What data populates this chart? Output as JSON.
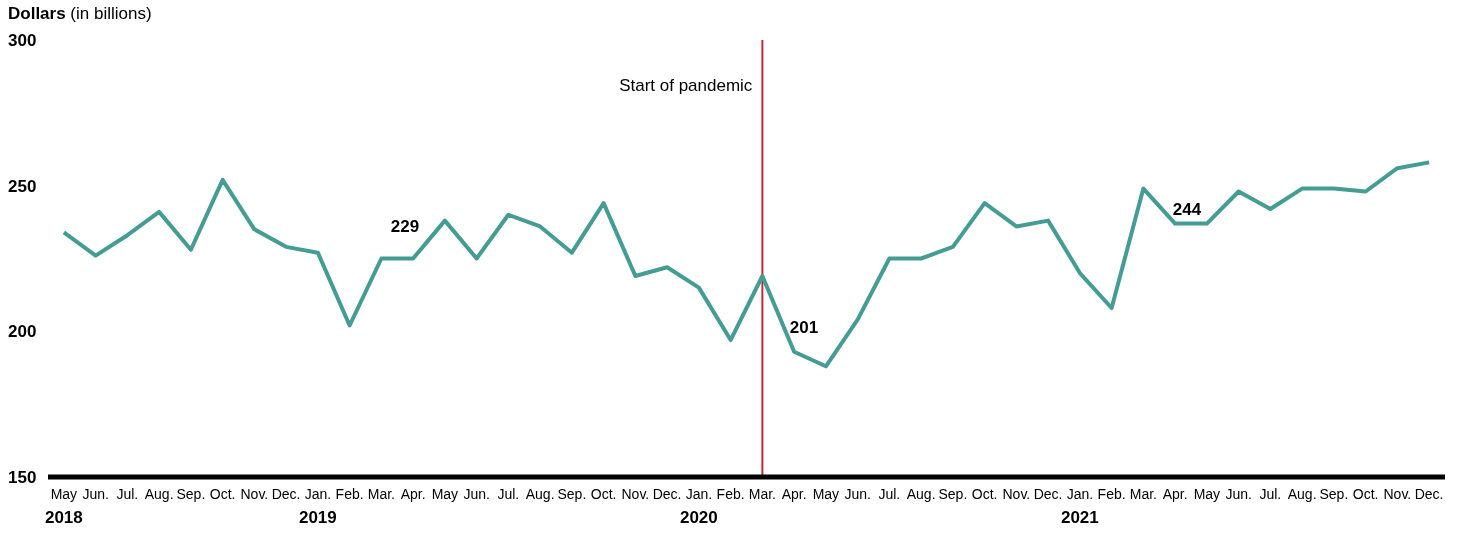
{
  "chart_data": {
    "type": "line",
    "ylabel": "Dollars (in billions)",
    "x": [
      "2018-05",
      "2018-06",
      "2018-07",
      "2018-08",
      "2018-09",
      "2018-10",
      "2018-11",
      "2018-12",
      "2019-01",
      "2019-02",
      "2019-03",
      "2019-04",
      "2019-05",
      "2019-06",
      "2019-07",
      "2019-08",
      "2019-09",
      "2019-10",
      "2019-11",
      "2019-12",
      "2020-01",
      "2020-02",
      "2020-03",
      "2020-04",
      "2020-05",
      "2020-06",
      "2020-07",
      "2020-08",
      "2020-09",
      "2020-10",
      "2020-11",
      "2020-12",
      "2021-01",
      "2021-02",
      "2021-03",
      "2021-04",
      "2021-05",
      "2021-06",
      "2021-07",
      "2021-08",
      "2021-09",
      "2021-10",
      "2021-11",
      "2021-12"
    ],
    "series": [
      {
        "color": "#459c94",
        "values": [
          234,
          226,
          233,
          241,
          228,
          252,
          235,
          229,
          227,
          202,
          225,
          225,
          238,
          225,
          240,
          236,
          227,
          244,
          219,
          222,
          215,
          197,
          219,
          193,
          188,
          204,
          225,
          225,
          229,
          244,
          236,
          238,
          220,
          208,
          249,
          237,
          237,
          248,
          242,
          249,
          249,
          248,
          256,
          258
        ]
      }
    ],
    "annotations": [
      "229",
      "201",
      "244"
    ],
    "xlim": [
      "2018-04-16",
      "2021-12-16"
    ],
    "xticks": [
      {
        "value": "2018-05",
        "label": "May\n2018"
      },
      {
        "value": "2018-06",
        "label": "Jun."
      },
      {
        "value": "2018-07",
        "label": "Jul."
      },
      {
        "value": "2018-08",
        "label": "Aug."
      },
      {
        "value": "2018-09",
        "label": "Sep."
      },
      {
        "value": "2018-10",
        "label": "Oct."
      },
      {
        "value": "2018-11",
        "label": "Nov."
      },
      {
        "value": "2018-12",
        "label": "Dec."
      },
      {
        "value": "2019-01",
        "label": "Jan.\n2019"
      },
      {
        "value": "2019-02",
        "label": "Feb."
      },
      {
        "value": "2019-03",
        "label": "Mar."
      },
      {
        "value": "2019-04",
        "label": "Apr."
      },
      {
        "value": "2019-05",
        "label": "May"
      },
      {
        "value": "2019-06",
        "label": "Jun."
      },
      {
        "value": "2019-07",
        "label": "Jul."
      },
      {
        "value": "2019-08",
        "label": "Aug."
      },
      {
        "value": "2019-09",
        "label": "Sep."
      },
      {
        "value": "2019-10",
        "label": "Oct."
      },
      {
        "value": "2019-11",
        "label": "Nov."
      },
      {
        "value": "2019-12",
        "label": "Dec."
      },
      {
        "value": "2020-01",
        "label": "Jan.\n2020"
      },
      {
        "value": "2020-02",
        "label": "Feb."
      },
      {
        "value": "2020-03",
        "label": "Mar."
      },
      {
        "value": "2020-04",
        "label": "Apr."
      },
      {
        "value": "2020-05",
        "label": "May"
      },
      {
        "value": "2020-06",
        "label": "Jun."
      },
      {
        "value": "2020-07",
        "label": "Jul."
      },
      {
        "value": "2020-08",
        "label": "Aug."
      },
      {
        "value": "2020-09",
        "label": "Sep."
      },
      {
        "value": "2020-10",
        "label": "Oct."
      },
      {
        "value": "2020-11",
        "label": "Nov."
      },
      {
        "value": "2020-12",
        "label": "Dec."
      },
      {
        "value": "2021-01",
        "label": "Jan.\n2021"
      },
      {
        "value": "2021-02",
        "label": "Feb."
      },
      {
        "value": "2021-03",
        "label": "Mar."
      },
      {
        "value": "2021-04",
        "label": "Apr."
      },
      {
        "value": "2021-05",
        "label": "May"
      },
      {
        "value": "2021-06",
        "label": "Jun."
      },
      {
        "value": "2021-07",
        "label": "Jul."
      },
      {
        "value": "2021-08",
        "label": "Aug."
      },
      {
        "value": "2021-09",
        "label": "Sep."
      },
      {
        "value": "2021-10",
        "label": "Oct."
      },
      {
        "value": "2021-11",
        "label": "Nov."
      },
      {
        "value": "2021-12",
        "label": "Dec."
      }
    ],
    "ylim": [
      150,
      300
    ],
    "yticks": [
      150,
      200,
      250,
      300
    ],
    "ref_lines": [
      {
        "axis": "x",
        "value": "2020-03",
        "label": "Start of pandemic",
        "color": "#c0283c"
      }
    ],
    "grid": false,
    "legend": false,
    "marker": "none",
    "line_style": "solid"
  }
}
